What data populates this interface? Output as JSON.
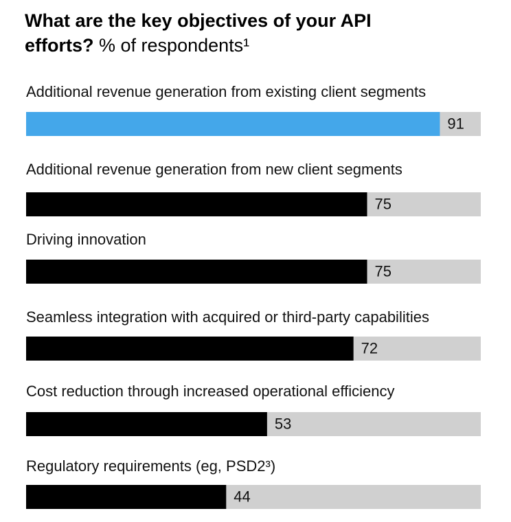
{
  "chart_data": {
    "type": "bar",
    "orientation": "horizontal",
    "title": "What are the key objectives of your API efforts?",
    "subtitle": "% of respondents¹",
    "categories": [
      "Additional revenue generation from existing client segments",
      "Additional revenue generation from new client segments",
      "Driving innovation",
      "Seamless integration with acquired or third-party capabilities",
      "Cost reduction through increased operational efficiency",
      "Regulatory requirements (eg, PSD2³)"
    ],
    "values": [
      91,
      75,
      75,
      72,
      53,
      44
    ],
    "colors": [
      "#44a7ea",
      "#000000",
      "#000000",
      "#000000",
      "#000000",
      "#000000"
    ],
    "track_color": "#d0d0d0",
    "xlim": [
      0,
      100
    ]
  }
}
